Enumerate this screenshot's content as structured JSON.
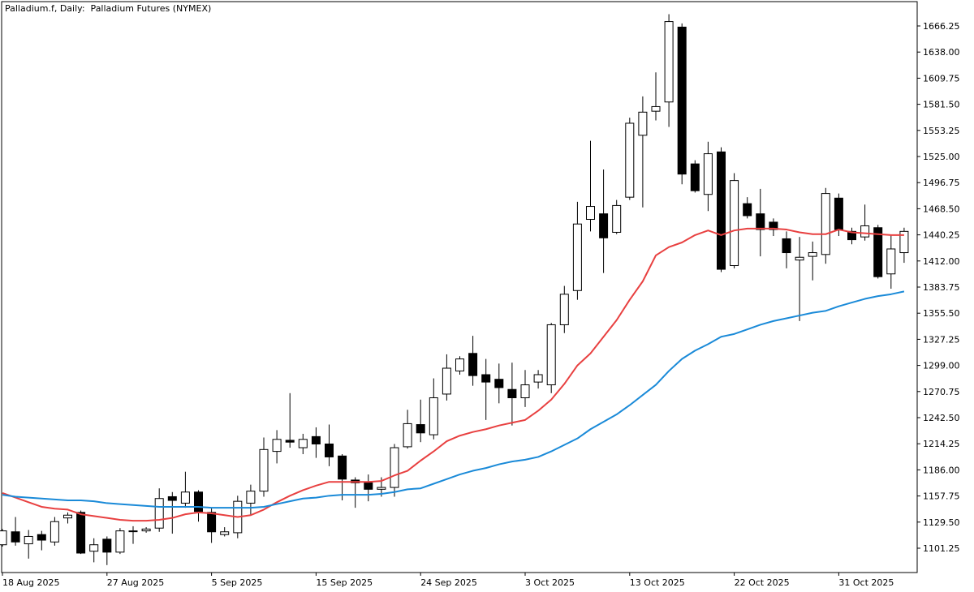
{
  "window": {
    "title": "Palladium.f, Daily:  Palladium Futures (NYMEX)"
  },
  "chart_data": {
    "type": "candlestick",
    "title": "Palladium.f, Daily:  Palladium Futures (NYMEX)",
    "symbol": "Palladium.f",
    "timeframe": "Daily",
    "instrument": "Palladium Futures (NYMEX)",
    "ylim": [
      1080,
      1690
    ],
    "y_ticks": [
      "1666.25",
      "1638.00",
      "1609.75",
      "1581.50",
      "1553.25",
      "1525.00",
      "1496.75",
      "1468.50",
      "1440.25",
      "1412.00",
      "1383.75",
      "1355.50",
      "1327.25",
      "1299.00",
      "1270.75",
      "1242.50",
      "1214.25",
      "1186.00",
      "1157.75",
      "1129.50",
      "1101.25"
    ],
    "x_labels": [
      {
        "bar": 0,
        "label": "18 Aug 2025"
      },
      {
        "bar": 8,
        "label": "27 Aug 2025"
      },
      {
        "bar": 16,
        "label": "5 Sep 2025"
      },
      {
        "bar": 24,
        "label": "15 Sep 2025"
      },
      {
        "bar": 32,
        "label": "24 Sep 2025"
      },
      {
        "bar": 40,
        "label": "3 Oct 2025"
      },
      {
        "bar": 48,
        "label": "13 Oct 2025"
      },
      {
        "bar": 56,
        "label": "22 Oct 2025"
      },
      {
        "bar": 64,
        "label": "31 Oct 2025"
      }
    ],
    "grid": false,
    "candles": [
      {
        "o": 1105,
        "h": 1122,
        "l": 1103,
        "c": 1120
      },
      {
        "o": 1119,
        "h": 1135,
        "l": 1104,
        "c": 1108
      },
      {
        "o": 1106,
        "h": 1121,
        "l": 1090,
        "c": 1114
      },
      {
        "o": 1116,
        "h": 1120,
        "l": 1099,
        "c": 1110
      },
      {
        "o": 1108,
        "h": 1135,
        "l": 1104,
        "c": 1130
      },
      {
        "o": 1134,
        "h": 1140,
        "l": 1128,
        "c": 1137
      },
      {
        "o": 1140,
        "h": 1142,
        "l": 1095,
        "c": 1096
      },
      {
        "o": 1098,
        "h": 1112,
        "l": 1086,
        "c": 1105
      },
      {
        "o": 1111,
        "h": 1114,
        "l": 1083,
        "c": 1097
      },
      {
        "o": 1097,
        "h": 1123,
        "l": 1095,
        "c": 1120
      },
      {
        "o": 1120,
        "h": 1125,
        "l": 1106,
        "c": 1120
      },
      {
        "o": 1120,
        "h": 1124,
        "l": 1118,
        "c": 1122
      },
      {
        "o": 1123,
        "h": 1166,
        "l": 1119,
        "c": 1155
      },
      {
        "o": 1157,
        "h": 1162,
        "l": 1117,
        "c": 1153
      },
      {
        "o": 1150,
        "h": 1184,
        "l": 1145,
        "c": 1162
      },
      {
        "o": 1162,
        "h": 1164,
        "l": 1130,
        "c": 1141
      },
      {
        "o": 1140,
        "h": 1145,
        "l": 1107,
        "c": 1119
      },
      {
        "o": 1116,
        "h": 1124,
        "l": 1114,
        "c": 1119
      },
      {
        "o": 1118,
        "h": 1158,
        "l": 1112,
        "c": 1152
      },
      {
        "o": 1150,
        "h": 1170,
        "l": 1137,
        "c": 1163
      },
      {
        "o": 1163,
        "h": 1221,
        "l": 1157,
        "c": 1208
      },
      {
        "o": 1206,
        "h": 1229,
        "l": 1193,
        "c": 1219
      },
      {
        "o": 1218,
        "h": 1269,
        "l": 1210,
        "c": 1216
      },
      {
        "o": 1210,
        "h": 1225,
        "l": 1203,
        "c": 1219
      },
      {
        "o": 1222,
        "h": 1232,
        "l": 1199,
        "c": 1214
      },
      {
        "o": 1214,
        "h": 1235,
        "l": 1190,
        "c": 1200
      },
      {
        "o": 1201,
        "h": 1203,
        "l": 1153,
        "c": 1176
      },
      {
        "o": 1175,
        "h": 1178,
        "l": 1145,
        "c": 1172
      },
      {
        "o": 1172,
        "h": 1181,
        "l": 1152,
        "c": 1165
      },
      {
        "o": 1165,
        "h": 1178,
        "l": 1157,
        "c": 1167
      },
      {
        "o": 1167,
        "h": 1214,
        "l": 1157,
        "c": 1210
      },
      {
        "o": 1211,
        "h": 1251,
        "l": 1209,
        "c": 1236
      },
      {
        "o": 1235,
        "h": 1262,
        "l": 1216,
        "c": 1226
      },
      {
        "o": 1224,
        "h": 1285,
        "l": 1219,
        "c": 1264
      },
      {
        "o": 1268,
        "h": 1311,
        "l": 1261,
        "c": 1296
      },
      {
        "o": 1293,
        "h": 1309,
        "l": 1289,
        "c": 1306
      },
      {
        "o": 1312,
        "h": 1331,
        "l": 1277,
        "c": 1288
      },
      {
        "o": 1289,
        "h": 1306,
        "l": 1240,
        "c": 1281
      },
      {
        "o": 1284,
        "h": 1301,
        "l": 1258,
        "c": 1275
      },
      {
        "o": 1273,
        "h": 1302,
        "l": 1234,
        "c": 1264
      },
      {
        "o": 1264,
        "h": 1294,
        "l": 1254,
        "c": 1278
      },
      {
        "o": 1281,
        "h": 1294,
        "l": 1274,
        "c": 1289
      },
      {
        "o": 1278,
        "h": 1345,
        "l": 1269,
        "c": 1343
      },
      {
        "o": 1343,
        "h": 1385,
        "l": 1334,
        "c": 1376
      },
      {
        "o": 1380,
        "h": 1476,
        "l": 1370,
        "c": 1452
      },
      {
        "o": 1457,
        "h": 1542,
        "l": 1444,
        "c": 1471
      },
      {
        "o": 1463,
        "h": 1511,
        "l": 1399,
        "c": 1437
      },
      {
        "o": 1443,
        "h": 1478,
        "l": 1441,
        "c": 1472
      },
      {
        "o": 1481,
        "h": 1567,
        "l": 1478,
        "c": 1561
      },
      {
        "o": 1548,
        "h": 1590,
        "l": 1470,
        "c": 1573
      },
      {
        "o": 1574,
        "h": 1616,
        "l": 1564,
        "c": 1579
      },
      {
        "o": 1584,
        "h": 1679,
        "l": 1557,
        "c": 1671
      },
      {
        "o": 1665,
        "h": 1669,
        "l": 1495,
        "c": 1506
      },
      {
        "o": 1517,
        "h": 1521,
        "l": 1486,
        "c": 1488
      },
      {
        "o": 1484,
        "h": 1541,
        "l": 1466,
        "c": 1528
      },
      {
        "o": 1530,
        "h": 1535,
        "l": 1400,
        "c": 1403
      },
      {
        "o": 1407,
        "h": 1507,
        "l": 1404,
        "c": 1499
      },
      {
        "o": 1474,
        "h": 1481,
        "l": 1458,
        "c": 1461
      },
      {
        "o": 1463,
        "h": 1490,
        "l": 1417,
        "c": 1446
      },
      {
        "o": 1454,
        "h": 1458,
        "l": 1439,
        "c": 1446
      },
      {
        "o": 1436,
        "h": 1444,
        "l": 1404,
        "c": 1421
      },
      {
        "o": 1413,
        "h": 1438,
        "l": 1347,
        "c": 1416
      },
      {
        "o": 1417,
        "h": 1433,
        "l": 1391,
        "c": 1421
      },
      {
        "o": 1419,
        "h": 1491,
        "l": 1409,
        "c": 1485
      },
      {
        "o": 1480,
        "h": 1485,
        "l": 1439,
        "c": 1446
      },
      {
        "o": 1444,
        "h": 1448,
        "l": 1430,
        "c": 1435
      },
      {
        "o": 1438,
        "h": 1473,
        "l": 1434,
        "c": 1450
      },
      {
        "o": 1448,
        "h": 1451,
        "l": 1393,
        "c": 1395
      },
      {
        "o": 1398,
        "h": 1440,
        "l": 1382,
        "c": 1425
      },
      {
        "o": 1421,
        "h": 1448,
        "l": 1410,
        "c": 1444
      }
    ],
    "series": [
      {
        "name": "",
        "color": "#e84040",
        "values": [
          1161,
          1156,
          1151,
          1146,
          1144,
          1143,
          1138,
          1136,
          1134,
          1132,
          1131,
          1131,
          1132,
          1134,
          1138,
          1140,
          1139,
          1137,
          1135,
          1137,
          1143,
          1151,
          1158,
          1164,
          1169,
          1173,
          1173,
          1173,
          1173,
          1174,
          1180,
          1185,
          1196,
          1206,
          1217,
          1223,
          1227,
          1230,
          1234,
          1237,
          1240,
          1250,
          1262,
          1279,
          1299,
          1312,
          1330,
          1348,
          1370,
          1390,
          1418,
          1427,
          1432,
          1440,
          1445,
          1440,
          1445,
          1447,
          1447,
          1447,
          1446,
          1443,
          1441,
          1441,
          1446,
          1443,
          1442,
          1441,
          1440,
          1440
        ]
      },
      {
        "name": "",
        "color": "#1a8ad8",
        "values": [
          1159,
          1157,
          1156,
          1155,
          1154,
          1153,
          1153,
          1152,
          1150,
          1149,
          1148,
          1147,
          1146,
          1146,
          1146,
          1146,
          1145,
          1145,
          1145,
          1145,
          1146,
          1149,
          1152,
          1155,
          1156,
          1158,
          1159,
          1159,
          1159,
          1160,
          1162,
          1165,
          1166,
          1171,
          1176,
          1181,
          1185,
          1188,
          1192,
          1195,
          1197,
          1200,
          1206,
          1213,
          1220,
          1230,
          1238,
          1246,
          1256,
          1267,
          1278,
          1293,
          1306,
          1315,
          1322,
          1330,
          1333,
          1338,
          1343,
          1347,
          1350,
          1353,
          1356,
          1358,
          1363,
          1367,
          1371,
          1374,
          1376,
          1379
        ]
      }
    ]
  }
}
